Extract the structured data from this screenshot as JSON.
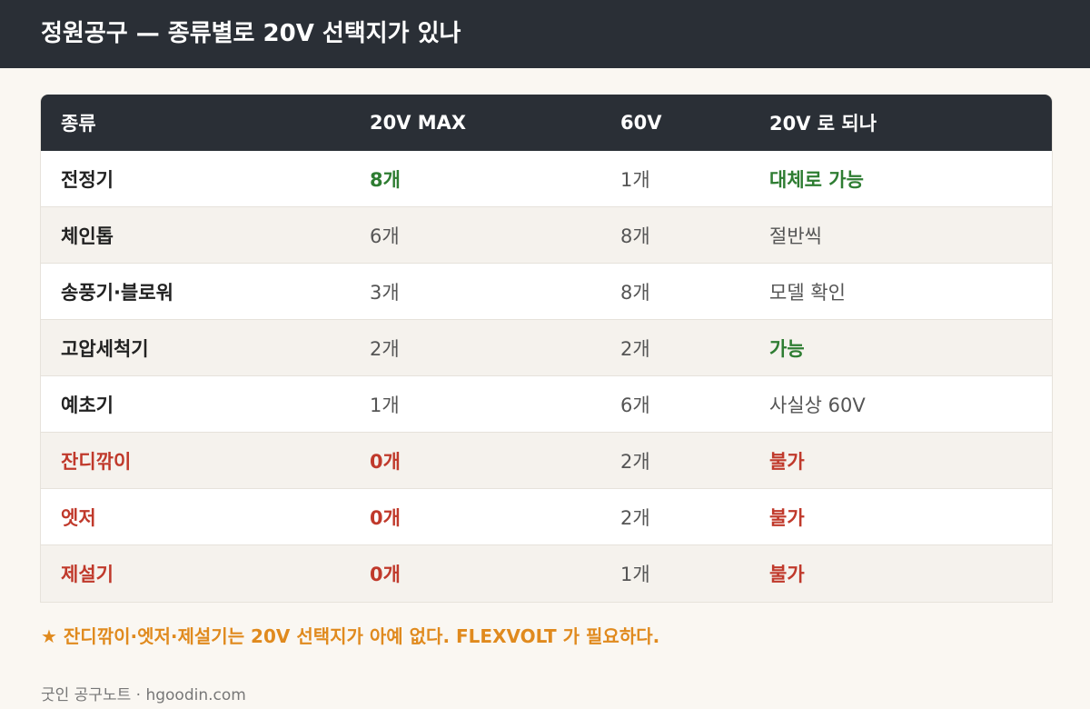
{
  "header": {
    "title": "정원공구 — 종류별로 20V 선택지가 있나"
  },
  "table": {
    "columns": [
      "종류",
      "20V MAX",
      "60V",
      "20V 로 되나"
    ],
    "rows": [
      [
        "전정기",
        "8개",
        "1개",
        "대체로 가능"
      ],
      [
        "체인톱",
        "6개",
        "8개",
        "절반씩"
      ],
      [
        "송풍기·블로워",
        "3개",
        "8개",
        "모델 확인"
      ],
      [
        "고압세척기",
        "2개",
        "2개",
        "가능"
      ],
      [
        "예초기",
        "1개",
        "6개",
        "사실상 60V"
      ],
      [
        "잔디깎이",
        "0개",
        "2개",
        "불가"
      ],
      [
        "엣저",
        "0개",
        "2개",
        "불가"
      ],
      [
        "제설기",
        "0개",
        "1개",
        "불가"
      ]
    ]
  },
  "note": "★ 잔디깎이·엣저·제설기는 20V 선택지가 아예 없다. FLEXVOLT 가 필요하다.",
  "footer": "굿인 공구노트 · hgoodin.com"
}
